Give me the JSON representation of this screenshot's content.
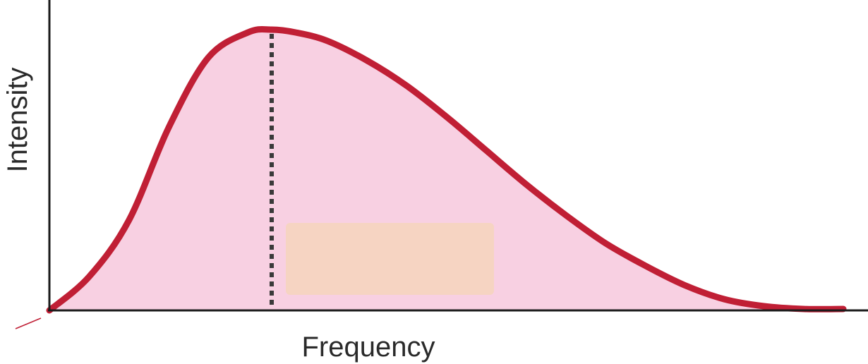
{
  "chart_data": {
    "type": "area",
    "title": "",
    "xlabel": "Frequency",
    "ylabel": "Intensity",
    "xlim": [
      0,
      1
    ],
    "ylim": [
      0,
      1
    ],
    "grid": false,
    "legend": "none",
    "x": [
      0.0,
      0.05,
      0.1,
      0.15,
      0.2,
      0.25,
      0.28,
      0.31,
      0.35,
      0.4,
      0.45,
      0.5,
      0.55,
      0.6,
      0.65,
      0.7,
      0.75,
      0.8,
      0.85,
      0.9,
      0.95,
      1.0
    ],
    "series": [
      {
        "values": [
          0.0,
          0.12,
          0.32,
          0.65,
          0.9,
          0.99,
          1.0,
          0.99,
          0.96,
          0.89,
          0.8,
          0.69,
          0.57,
          0.45,
          0.34,
          0.24,
          0.16,
          0.09,
          0.04,
          0.015,
          0.005,
          0.005
        ]
      }
    ],
    "peak_x": 0.28,
    "colors": {
      "curve": "#c01f35",
      "fill": "#f8d0e2",
      "marker": "#3a3a3a",
      "box": "#f6d4c2",
      "axis": "#1a1a1a"
    }
  }
}
